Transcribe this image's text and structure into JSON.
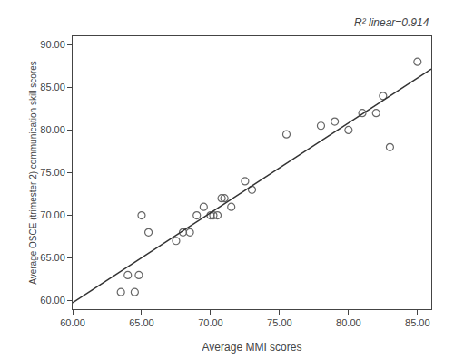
{
  "chart_data": {
    "type": "scatter",
    "xlabel": "Average MMI scores",
    "ylabel": "Average OSCE (trimester 2) communication skill scores",
    "annotations": [
      "R² linear=0.914"
    ],
    "xlim": [
      60.0,
      86.0
    ],
    "ylim": [
      59.0,
      91.0
    ],
    "xticks": [
      {
        "value": 60.0,
        "label": "60.00"
      },
      {
        "value": 65.0,
        "label": "65.00"
      },
      {
        "value": 70.0,
        "label": "70.00"
      },
      {
        "value": 75.0,
        "label": "75.00"
      },
      {
        "value": 80.0,
        "label": "80.00"
      },
      {
        "value": 85.0,
        "label": "85.00"
      }
    ],
    "yticks": [
      {
        "value": 60.0,
        "label": "60.00"
      },
      {
        "value": 65.0,
        "label": "65.00"
      },
      {
        "value": 70.0,
        "label": "70.00"
      },
      {
        "value": 75.0,
        "label": "75.00"
      },
      {
        "value": 80.0,
        "label": "80.00"
      },
      {
        "value": 85.0,
        "label": "85.00"
      },
      {
        "value": 90.0,
        "label": "90.00"
      }
    ],
    "grid": false,
    "series": [
      {
        "type": "scatter",
        "marker": "open circle",
        "color": "#666666",
        "x": [
          63.5,
          64.5,
          64.0,
          64.8,
          65.0,
          65.5,
          67.5,
          68.0,
          68.5,
          69.0,
          69.5,
          70.0,
          70.2,
          70.5,
          70.8,
          71.0,
          71.5,
          72.5,
          73.0,
          75.5,
          78.0,
          79.0,
          80.0,
          81.0,
          82.0,
          82.5,
          83.0,
          85.0
        ],
        "values": [
          61.0,
          61.0,
          63.0,
          63.0,
          70.0,
          68.0,
          67.0,
          68.0,
          68.0,
          70.0,
          71.0,
          70.0,
          70.0,
          70.0,
          72.0,
          72.0,
          71.0,
          74.0,
          73.0,
          79.5,
          80.5,
          81.0,
          80.0,
          82.0,
          82.0,
          84.0,
          78.0,
          88.0
        ]
      },
      {
        "type": "line",
        "line_style": "solid",
        "color": "#333333",
        "x": [
          60.0,
          86.0
        ],
        "values": [
          59.7543,
          87.1533
        ]
      }
    ]
  }
}
